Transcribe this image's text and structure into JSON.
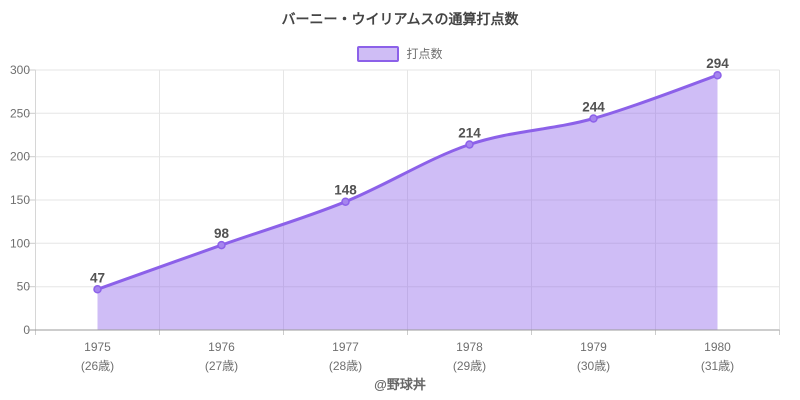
{
  "title": "バーニー・ウイリアムスの通算打点数",
  "footer_credit": "@野球丼",
  "legend": {
    "label": "打点数"
  },
  "colors": {
    "accent_line": "#8c61e9",
    "accent_fill": "#8c61e9",
    "accent_fill_opacity": 0.42,
    "marker_fill": "#a585ee"
  },
  "chart_data": {
    "type": "area",
    "smooth": true,
    "title": "バーニー・ウイリアムスの通算打点数",
    "series_name": "打点数",
    "categories": [
      "1975",
      "1976",
      "1977",
      "1978",
      "1979",
      "1980"
    ],
    "category_sublabels": [
      "(26歳)",
      "(27歳)",
      "(28歳)",
      "(29歳)",
      "(30歳)",
      "(31歳)"
    ],
    "values": [
      47,
      98,
      148,
      214,
      244,
      294
    ],
    "xlabel": "",
    "ylabel": "",
    "ylim": [
      0,
      300
    ],
    "yticks": [
      0,
      50,
      100,
      150,
      200,
      250,
      300
    ],
    "grid": true,
    "legend_position": "top"
  }
}
